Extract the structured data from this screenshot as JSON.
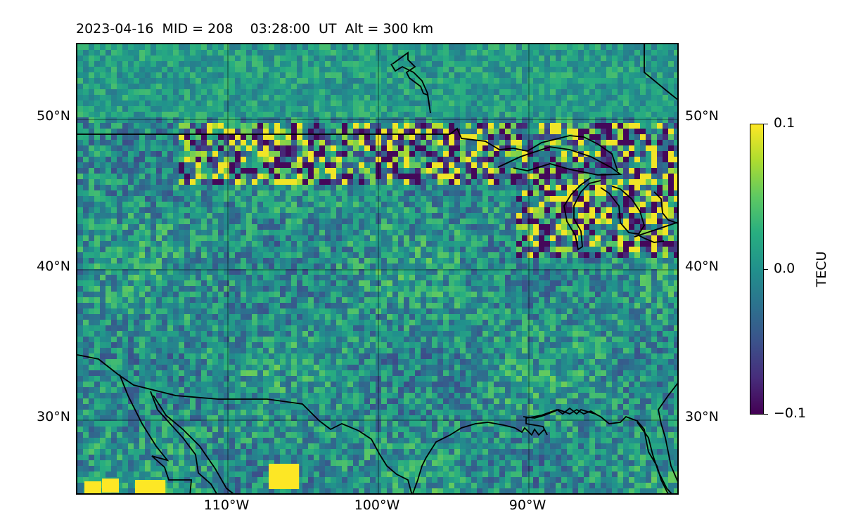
{
  "header": {
    "date": "2023-04-16",
    "mid": "MID = 208",
    "time": "03:28:00  UT",
    "altitude": "Alt = 300 km"
  },
  "map": {
    "type": "heatmap",
    "projection": "equirectangular",
    "lon_range": [
      -120,
      -80
    ],
    "lat_range": [
      25,
      55
    ],
    "grid": true,
    "lat_ticks": [
      "30°N",
      "40°N",
      "50°N"
    ],
    "lon_ticks": [
      "110°W",
      "100°W",
      "90°W"
    ],
    "features": [
      "coastlines",
      "country-borders",
      "great-lakes-outline"
    ],
    "disturbance_band": "strong positive/negative TEC perturbations along ~45–50°N from ~108°W to ~82°W, strongest over the Great Lakes"
  },
  "colorbar": {
    "colormap": "viridis",
    "min_label": "−0.1",
    "zero_label": "0.0",
    "max_label": "0.1",
    "unit": "TECU",
    "low_color": "#440154",
    "mid_color": "#21918c",
    "high_color": "#fde725"
  }
}
